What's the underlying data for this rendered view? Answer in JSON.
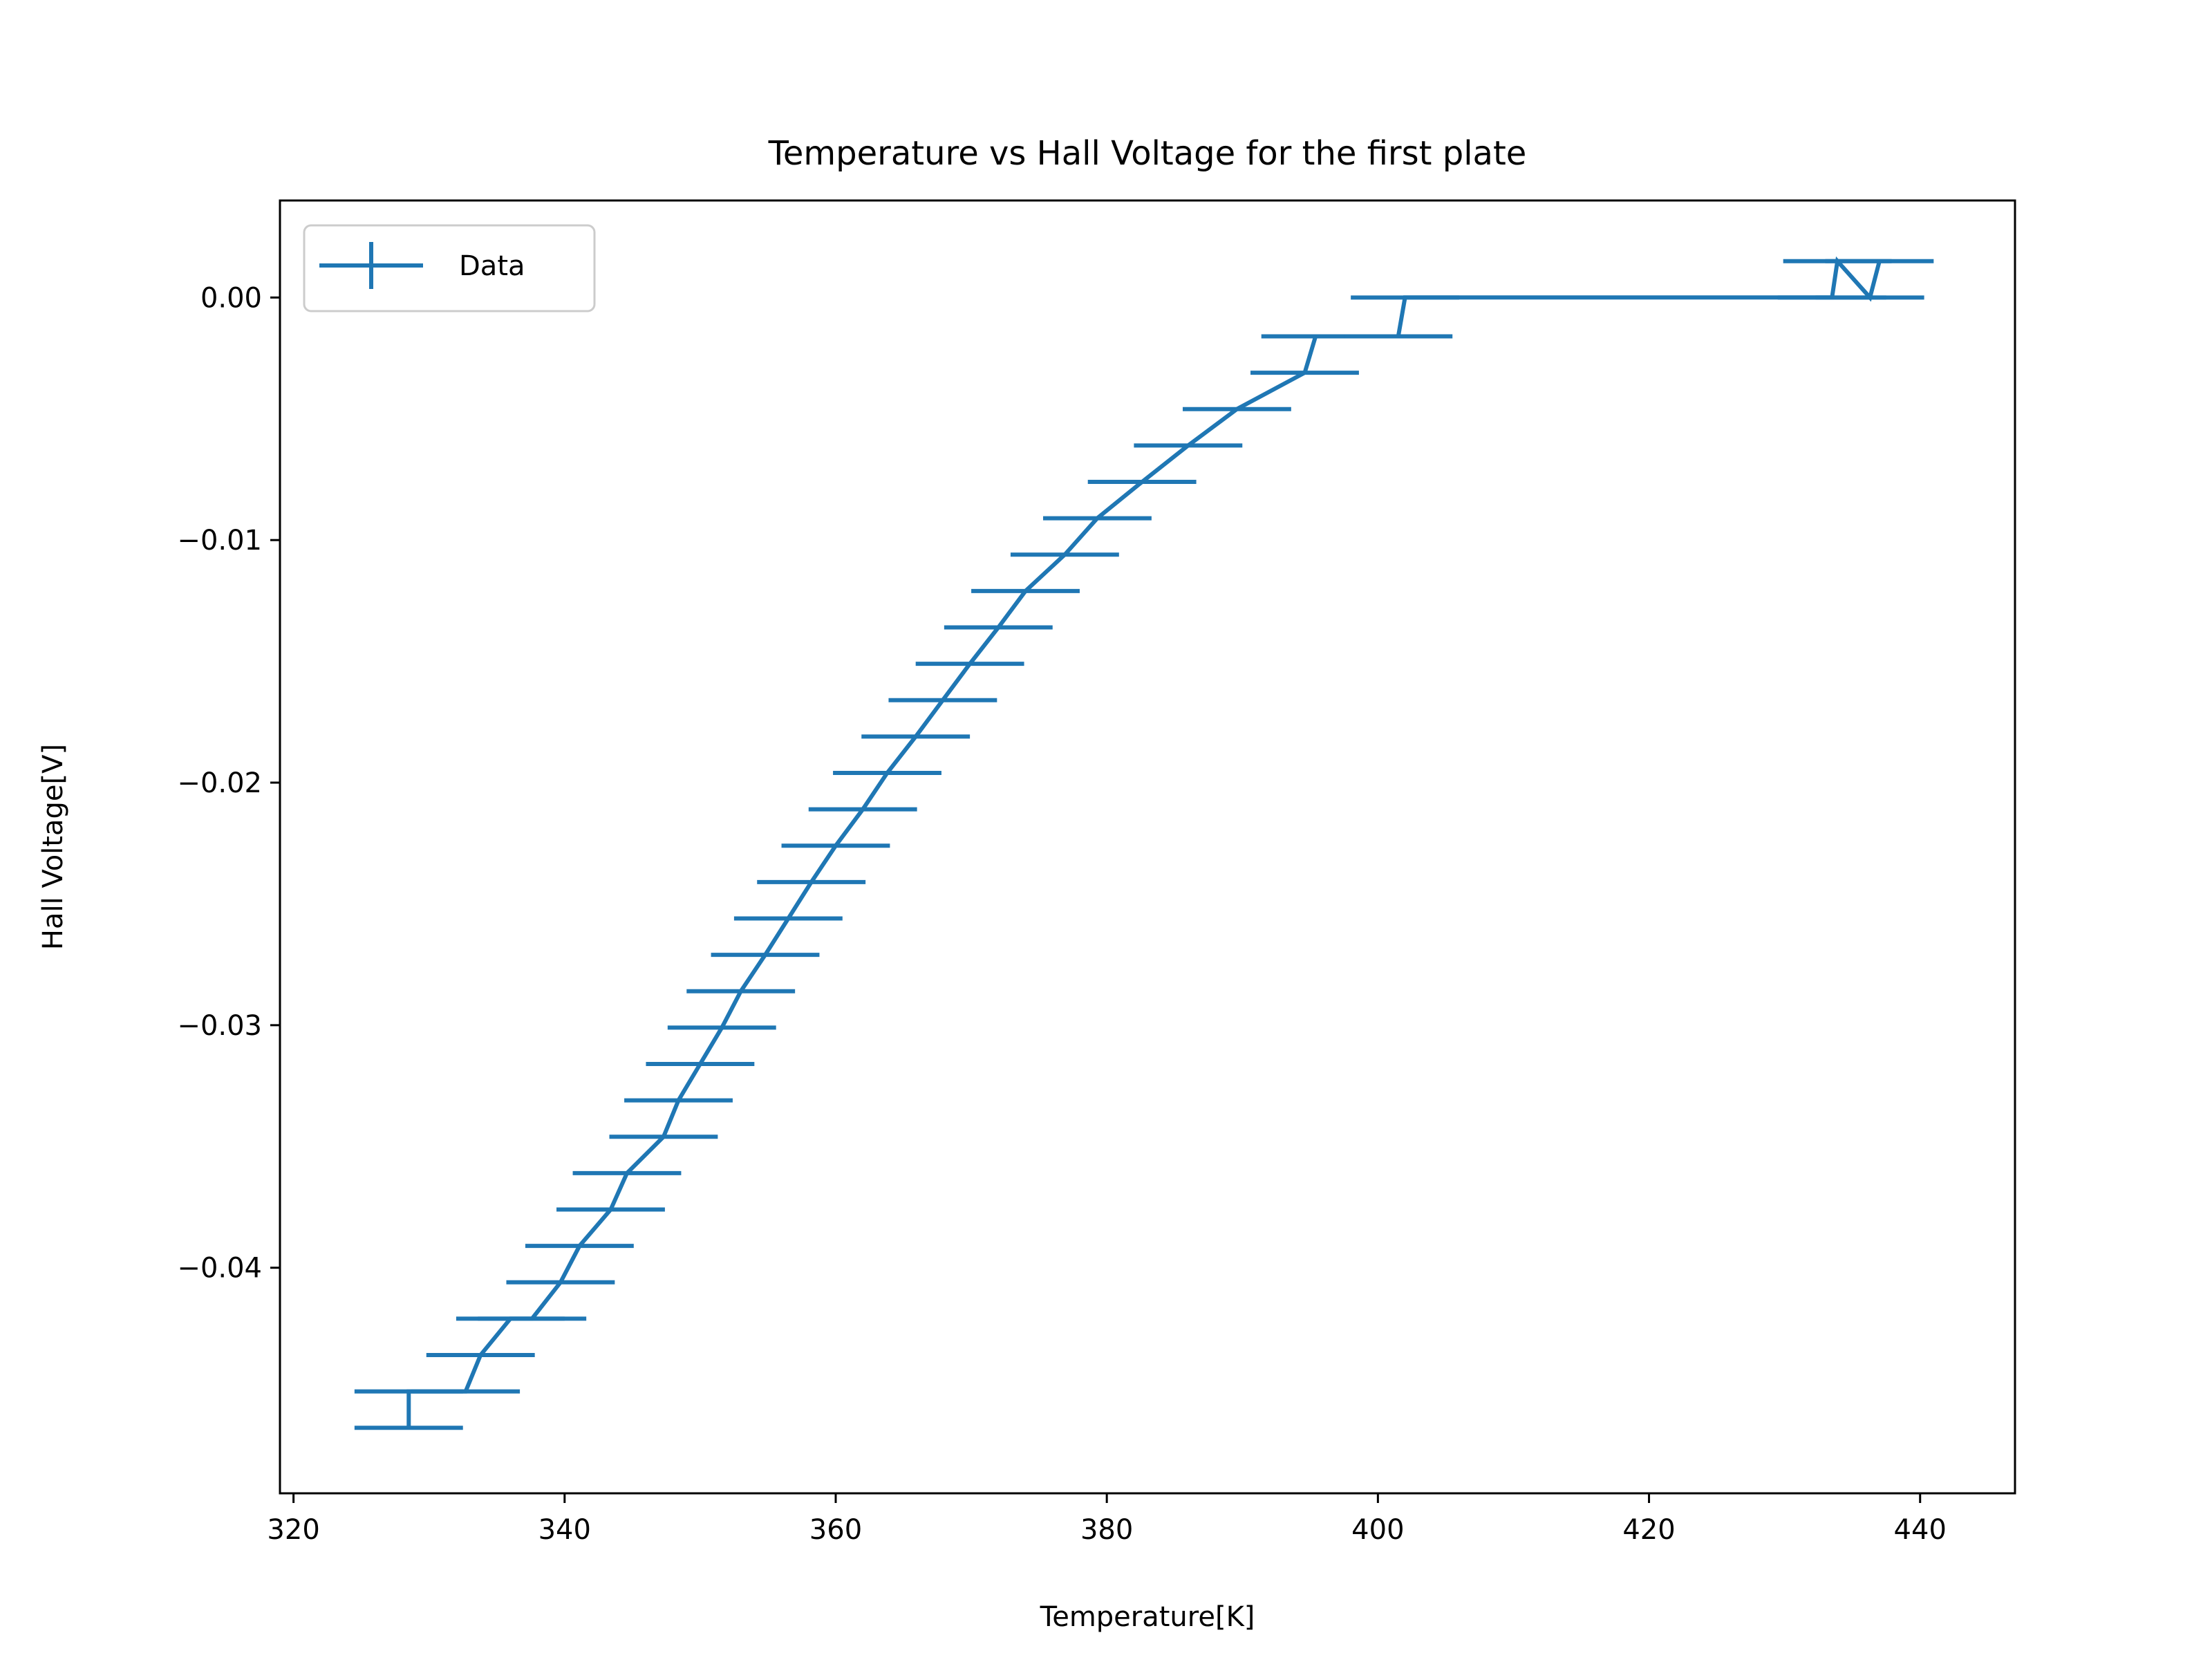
{
  "chart_data": {
    "type": "line",
    "title": "Temperature vs Hall Voltage for the first plate",
    "xlabel": "Temperature[K]",
    "ylabel": "Hall Voltage[V]",
    "xlim": [
      319,
      447
    ],
    "ylim": [
      -0.0493,
      0.004
    ],
    "xticks": [
      320,
      340,
      360,
      380,
      400,
      420,
      440
    ],
    "xtick_labels": [
      "320",
      "340",
      "360",
      "380",
      "400",
      "420",
      "440"
    ],
    "yticks": [
      0.0,
      -0.01,
      -0.02,
      -0.03,
      -0.04
    ],
    "ytick_labels": [
      "0.00",
      "−0.01",
      "−0.02",
      "−0.03",
      "−0.04"
    ],
    "grid": false,
    "legend": {
      "position": "top-left",
      "entries": [
        "Data"
      ]
    },
    "x_error": 4,
    "color": "#1f77b4",
    "series": [
      {
        "name": "Data",
        "x": [
          328.5,
          328.5,
          332.7,
          333.8,
          336.0,
          337.6,
          339.7,
          341.1,
          343.4,
          344.6,
          347.3,
          348.4,
          350.0,
          351.6,
          353.0,
          354.8,
          356.5,
          358.2,
          360.0,
          362.0,
          363.8,
          365.9,
          367.9,
          369.9,
          372.0,
          374.0,
          376.9,
          379.3,
          382.6,
          386.0,
          389.6,
          394.6,
          395.4,
          401.5,
          402.0,
          433.5,
          433.9,
          436.3,
          437.0
        ],
        "y": [
          -0.0466,
          -0.0451,
          -0.0451,
          -0.0436,
          -0.0421,
          -0.0421,
          -0.0406,
          -0.0391,
          -0.0376,
          -0.0361,
          -0.0346,
          -0.0331,
          -0.0316,
          -0.0301,
          -0.0286,
          -0.0271,
          -0.0256,
          -0.0241,
          -0.0226,
          -0.0211,
          -0.0196,
          -0.0181,
          -0.0166,
          -0.0151,
          -0.0136,
          -0.0121,
          -0.0106,
          -0.0091,
          -0.0076,
          -0.0061,
          -0.0046,
          -0.0031,
          -0.0016,
          -0.0016,
          0.0,
          0.0,
          0.0015,
          0.0,
          0.0015
        ]
      }
    ]
  }
}
